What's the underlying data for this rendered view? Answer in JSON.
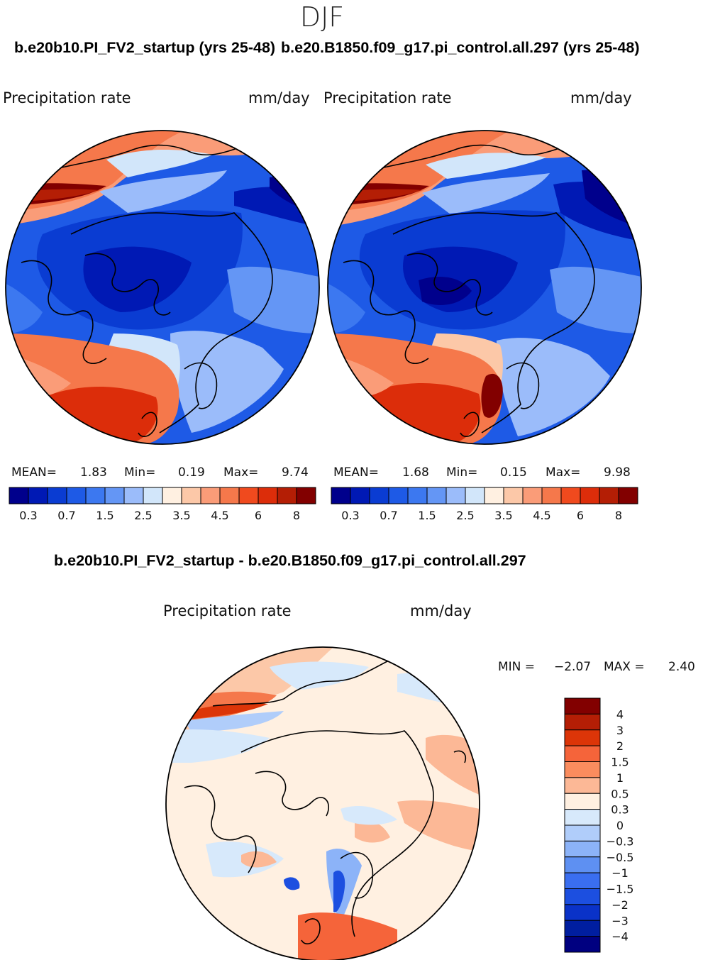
{
  "page": {
    "season": "DJF",
    "left_title": "b.e20b10.PI_FV2_startup (yrs 25-48)",
    "right_title": "b.e20.B1850.f09_g17.pi_control.all.297 (yrs 25-48)",
    "diff_title": "b.e20b10.PI_FV2_startup - b.e20.B1850.f09_g17.pi_control.all.297"
  },
  "chart_data": [
    {
      "type": "polar_contour_map",
      "projection": "north-polar stereographic",
      "title": "b.e20b10.PI_FV2_startup (yrs 25-48)",
      "variable": "Precipitation rate",
      "units": "mm/day",
      "stats": {
        "mean_label": "MEAN=",
        "mean": "1.83",
        "min_label": "Min=",
        "min": "0.19",
        "max_label": "Max=",
        "max": "9.74"
      },
      "colorbar": {
        "orientation": "horizontal",
        "colors": [
          "#00008c",
          "#0019b4",
          "#0a3cd2",
          "#1e5ae6",
          "#3c78f0",
          "#6496f5",
          "#9bbcfa",
          "#d2e6fa",
          "#fff0e1",
          "#fcc8a8",
          "#fa9c78",
          "#f5784b",
          "#f04a1e",
          "#dc2d0a",
          "#b41e05",
          "#820000"
        ],
        "tick_labels": [
          "0.3",
          "0.7",
          "1.5",
          "2.5",
          "3.5",
          "4.5",
          "6",
          "8"
        ]
      }
    },
    {
      "type": "polar_contour_map",
      "projection": "north-polar stereographic",
      "title": "b.e20.B1850.f09_g17.pi_control.all.297 (yrs 25-48)",
      "variable": "Precipitation rate",
      "units": "mm/day",
      "stats": {
        "mean_label": "MEAN=",
        "mean": "1.68",
        "min_label": "Min=",
        "min": "0.15",
        "max_label": "Max=",
        "max": "9.98"
      },
      "colorbar": {
        "orientation": "horizontal",
        "colors": [
          "#00008c",
          "#0019b4",
          "#0a3cd2",
          "#1e5ae6",
          "#3c78f0",
          "#6496f5",
          "#9bbcfa",
          "#d2e6fa",
          "#fff0e1",
          "#fcc8a8",
          "#fa9c78",
          "#f5784b",
          "#f04a1e",
          "#dc2d0a",
          "#b41e05",
          "#820000"
        ],
        "tick_labels": [
          "0.3",
          "0.7",
          "1.5",
          "2.5",
          "3.5",
          "4.5",
          "6",
          "8"
        ]
      }
    },
    {
      "type": "polar_contour_map",
      "projection": "north-polar stereographic",
      "title": "b.e20b10.PI_FV2_startup - b.e20.B1850.f09_g17.pi_control.all.297",
      "variable": "Precipitation rate",
      "units": "mm/day",
      "stats": {
        "min_label": "MIN =",
        "min": "−2.07",
        "max_label": "MAX =",
        "max": "2.40"
      },
      "colorbar": {
        "orientation": "vertical",
        "colors_top_to_bottom": [
          "#820000",
          "#b41e05",
          "#dc3508",
          "#f5643a",
          "#fa8c5e",
          "#fcb896",
          "#fff0e1",
          "#d7e9fb",
          "#b0cdfa",
          "#8cb3f8",
          "#5e90f2",
          "#3a6ef0",
          "#1c4fe0",
          "#0a32c8",
          "#001ea0",
          "#000080"
        ],
        "tick_labels": [
          "4",
          "3",
          "2",
          "1.5",
          "1",
          "0.5",
          "0.3",
          "0",
          "−0.3",
          "−0.5",
          "−1",
          "−1.5",
          "−2",
          "−3",
          "−4"
        ]
      }
    }
  ]
}
